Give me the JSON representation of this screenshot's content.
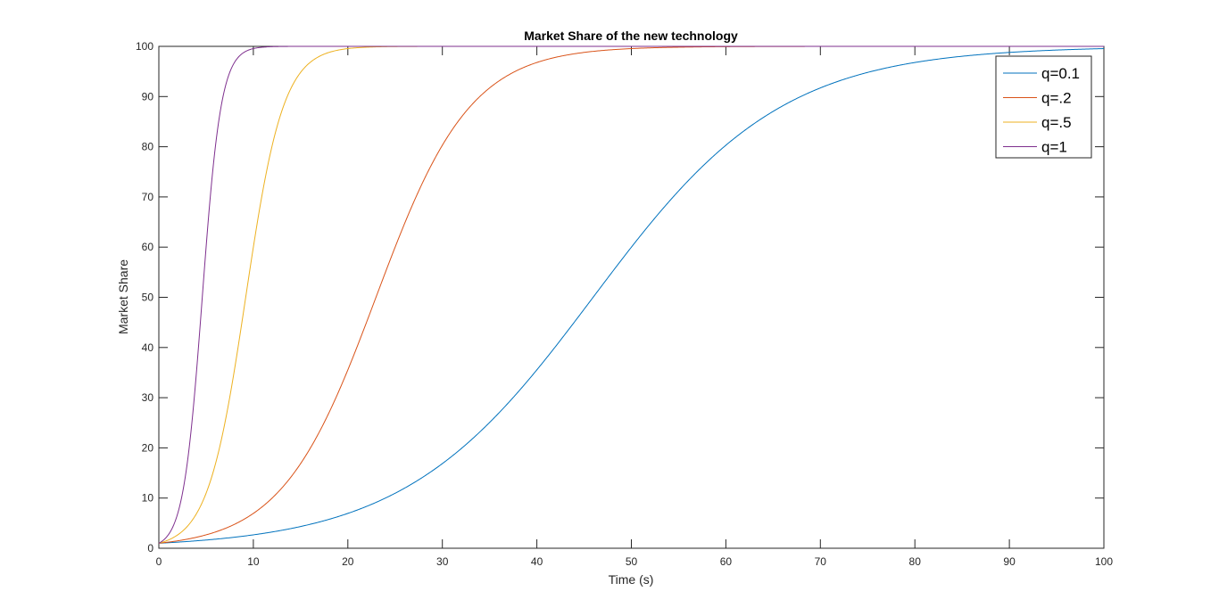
{
  "chart_data": {
    "type": "line",
    "title": "Market Share of the new technology",
    "xlabel": "Time (s)",
    "ylabel": "Market Share",
    "xlim": [
      0,
      100
    ],
    "ylim": [
      0,
      100
    ],
    "xticks": [
      "0",
      "10",
      "20",
      "30",
      "40",
      "50",
      "60",
      "70",
      "80",
      "90",
      "100"
    ],
    "yticks": [
      "0",
      "10",
      "20",
      "30",
      "40",
      "50",
      "60",
      "70",
      "80",
      "90",
      "100"
    ],
    "grid": false,
    "legend_position": "top-right",
    "model": {
      "form": "logistic",
      "initial_value": 1,
      "capacity": 100
    },
    "series": [
      {
        "name": "q=0.1",
        "q": 0.1,
        "color": "#0072BD"
      },
      {
        "name": "q=.2",
        "q": 0.2,
        "color": "#D95319"
      },
      {
        "name": "q=.5",
        "q": 0.5,
        "color": "#EDB120"
      },
      {
        "name": "q=1",
        "q": 1,
        "color": "#7E2F8E"
      }
    ]
  }
}
